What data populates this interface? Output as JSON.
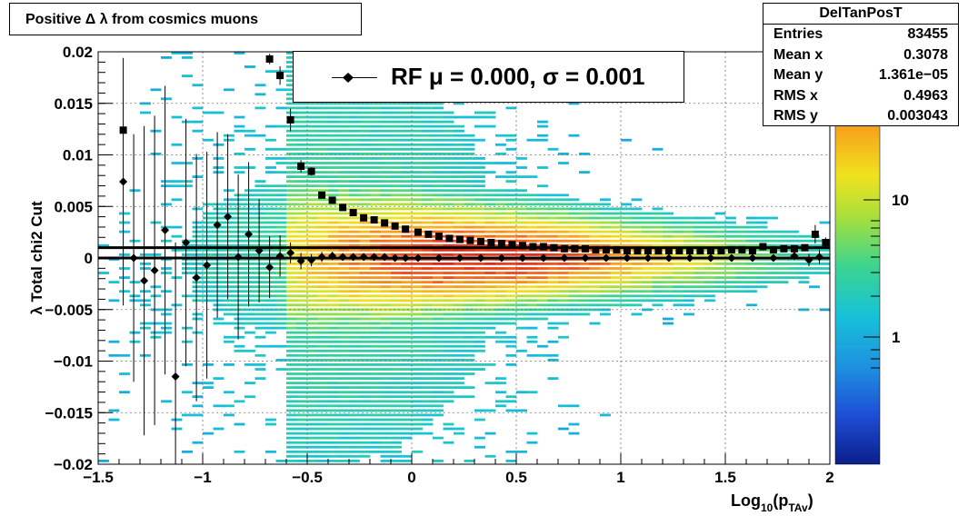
{
  "title": "Positive Δ λ from cosmics muons",
  "stats": {
    "name": "DelTanPosT",
    "rows": [
      {
        "label": "Entries",
        "value": "83455"
      },
      {
        "label": "Mean x",
        "value": "0.3078"
      },
      {
        "label": "Mean y",
        "value": "1.361e−05"
      },
      {
        "label": "RMS x",
        "value": "0.4963"
      },
      {
        "label": "RMS y",
        "value": "0.003043"
      }
    ]
  },
  "legend": {
    "text": "RF μ =  0.000, σ =   0.001"
  },
  "chart_data": {
    "type": "heatmap",
    "title": "Positive Δ λ from cosmics muons",
    "xlabel": "Log10(pTAv)",
    "ylabel": "λ  Total chi2 Cut",
    "xlim": [
      -1.5,
      2.0
    ],
    "ylim": [
      -0.02,
      0.02
    ],
    "x_ticks": [
      "−1.5",
      "−1",
      "−0.5",
      "0",
      "0.5",
      "1",
      "1.5",
      "2"
    ],
    "y_ticks": [
      "−0.02",
      "−0.015",
      "−0.01",
      "−0.005",
      "0",
      "0.005",
      "0.01",
      "0.015",
      "0.02"
    ],
    "colorbar": {
      "scale": "log",
      "labels": [
        "1",
        "10"
      ]
    },
    "grid": true,
    "series": [
      {
        "name": "RF",
        "marker": "diamond",
        "x": [
          -1.38,
          -1.33,
          -1.28,
          -1.23,
          -1.18,
          -1.13,
          -1.08,
          -1.03,
          -0.98,
          -0.93,
          -0.88,
          -0.83,
          -0.78,
          -0.73,
          -0.68,
          -0.63,
          -0.58,
          -0.53,
          -0.48,
          -0.43,
          -0.38,
          -0.33,
          -0.28,
          -0.23,
          -0.18,
          -0.13,
          -0.08,
          -0.03,
          0.03,
          0.13,
          0.23,
          0.33,
          0.43,
          0.53,
          0.63,
          0.73,
          0.83,
          0.93,
          1.03,
          1.13,
          1.23,
          1.33,
          1.43,
          1.53,
          1.63,
          1.73,
          1.83,
          1.9,
          1.95
        ],
        "y": [
          0.0074,
          0.0,
          -0.0022,
          -0.0012,
          0.0027,
          -0.0115,
          0.0015,
          -0.0019,
          -0.0007,
          0.0032,
          0.004,
          0.0001,
          0.0023,
          0.0007,
          -0.0009,
          0.0002,
          0.0005,
          -0.0003,
          -0.0002,
          0.0001,
          0.0002,
          0.0001,
          0.0001,
          0.0001,
          0.0001,
          0.0001,
          0.0,
          0.0,
          0.0,
          0.0,
          0.0,
          0.0,
          0.0,
          0.0,
          0.0,
          0.0,
          0.0,
          0.0,
          0.0,
          0.0,
          0.0,
          0.0,
          0.0,
          0.0,
          0.0,
          0.0,
          0.0002,
          -0.0002,
          0.0001
        ],
        "err": [
          0.012,
          0.012,
          0.015,
          0.015,
          0.014,
          0.013,
          0.012,
          0.012,
          0.011,
          0.009,
          0.008,
          0.008,
          0.007,
          0.005,
          0.003,
          0.002,
          0.001,
          0.0008,
          0.0006,
          0.0005,
          0.0004,
          0.0003,
          0.0002,
          0.0002,
          0.0001,
          0.0001,
          0.0001,
          0.0001,
          0.0001,
          0.0001,
          0.0001,
          0.0001,
          0.0001,
          0.0001,
          0.0001,
          0.0001,
          0.0001,
          0.0001,
          0.0001,
          0.0001,
          0.0001,
          0.0001,
          0.0001,
          0.0001,
          0.0001,
          0.0001,
          0.0003,
          0.0006,
          0.0007
        ]
      },
      {
        "name": "σ",
        "marker": "square",
        "x": [
          -1.38,
          -0.68,
          -0.63,
          -0.58,
          -0.53,
          -0.48,
          -0.43,
          -0.38,
          -0.33,
          -0.28,
          -0.23,
          -0.18,
          -0.13,
          -0.08,
          -0.03,
          0.03,
          0.08,
          0.13,
          0.18,
          0.23,
          0.28,
          0.33,
          0.38,
          0.43,
          0.48,
          0.53,
          0.58,
          0.63,
          0.68,
          0.73,
          0.78,
          0.83,
          0.88,
          0.93,
          0.98,
          1.03,
          1.08,
          1.13,
          1.18,
          1.23,
          1.28,
          1.33,
          1.38,
          1.43,
          1.48,
          1.53,
          1.58,
          1.63,
          1.68,
          1.73,
          1.78,
          1.83,
          1.88,
          1.93,
          1.98
        ],
        "y": [
          0.0124,
          0.0193,
          0.0177,
          0.0134,
          0.0089,
          0.0084,
          0.0061,
          0.0056,
          0.0049,
          0.0044,
          0.0039,
          0.0037,
          0.0034,
          0.0031,
          0.0028,
          0.0025,
          0.0023,
          0.0021,
          0.0019,
          0.0018,
          0.0017,
          0.0016,
          0.0015,
          0.0014,
          0.0013,
          0.0012,
          0.0011,
          0.0011,
          0.001,
          0.0009,
          0.0009,
          0.0009,
          0.0008,
          0.0008,
          0.0008,
          0.0007,
          0.0007,
          0.0007,
          0.0007,
          0.0007,
          0.0007,
          0.0007,
          0.0007,
          0.0007,
          0.0007,
          0.0008,
          0.0008,
          0.0007,
          0.0011,
          0.0008,
          0.0009,
          0.0009,
          0.001,
          0.0023,
          0.0015
        ],
        "err": [
          0.0,
          0.0005,
          0.0009,
          0.0011,
          0.0006,
          0.0004,
          0.0003,
          0.0002,
          0.0002,
          0.0001,
          0.0001,
          0.0001,
          0.0001,
          0.0001,
          0.0001,
          0.0001,
          0.0001,
          0.0001,
          0.0001,
          0.0001,
          0.0001,
          0.0001,
          0.0001,
          0.0001,
          0.0001,
          0.0001,
          0.0001,
          0.0001,
          0.0001,
          0.0001,
          0.0001,
          0.0001,
          0.0001,
          0.0001,
          0.0001,
          0.0001,
          0.0001,
          0.0001,
          0.0001,
          0.0001,
          0.0001,
          0.0001,
          0.0001,
          0.0001,
          0.0001,
          0.0001,
          0.0001,
          0.0001,
          0.0001,
          0.0001,
          0.0001,
          0.0001,
          0.0002,
          0.0009,
          0.0005
        ]
      }
    ],
    "reference_lines_y": [
      0.0,
      0.001
    ]
  }
}
